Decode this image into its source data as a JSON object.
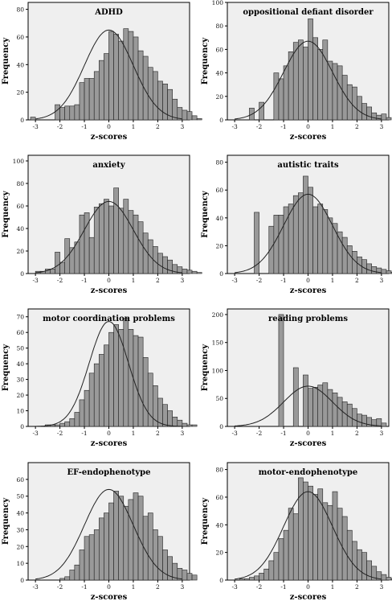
{
  "chart_data": [
    {
      "type": "bar",
      "title": "ADHD",
      "xlabel": "z-scores",
      "ylabel": "Frequency",
      "xlim": [
        -3.3,
        3.3
      ],
      "ylim": [
        0,
        85
      ],
      "xticks": [
        "-3",
        "-2",
        "-1",
        "0",
        "1",
        "2",
        "3"
      ],
      "yticks": [
        "0",
        "20",
        "40",
        "60",
        "80"
      ],
      "bin_start": -3.2,
      "bin_width": 0.2,
      "values": [
        2,
        0,
        0,
        0,
        0,
        11,
        9,
        10,
        10,
        11,
        27,
        30,
        30,
        35,
        43,
        48,
        64,
        62,
        57,
        66,
        64,
        60,
        50,
        46,
        38,
        35,
        28,
        26,
        22,
        15,
        9,
        7,
        6,
        3,
        1
      ],
      "curve": {
        "mean": 0.0,
        "sd": 1.0,
        "peak": 65
      }
    },
    {
      "type": "bar",
      "title": "oppositional defiant disorder",
      "xlabel": "z-scores",
      "ylabel": "Frequency",
      "xlim": [
        -3.3,
        3.3
      ],
      "ylim": [
        0,
        100
      ],
      "xticks": [
        "-3",
        "-2",
        "-1",
        "0",
        "1",
        "2",
        "3"
      ],
      "yticks": [
        "0",
        "20",
        "40",
        "60",
        "80",
        "100"
      ],
      "bin_start": -3.2,
      "bin_width": 0.2,
      "values": [
        0,
        0,
        0,
        0,
        10,
        0,
        15,
        0,
        0,
        40,
        35,
        46,
        58,
        66,
        68,
        62,
        86,
        70,
        60,
        68,
        50,
        48,
        46,
        38,
        30,
        28,
        20,
        14,
        11,
        6,
        4,
        5,
        2,
        0,
        1
      ],
      "curve": {
        "mean": 0.0,
        "sd": 1.0,
        "peak": 67
      }
    },
    {
      "type": "bar",
      "title": "anxiety",
      "xlabel": "z-scores",
      "ylabel": "Frequency",
      "xlim": [
        -3.3,
        3.3
      ],
      "ylim": [
        0,
        105
      ],
      "xticks": [
        "-3",
        "-2",
        "-1",
        "0",
        "1",
        "2",
        "3"
      ],
      "yticks": [
        "0",
        "20",
        "40",
        "60",
        "80",
        "100"
      ],
      "bin_start": -3.2,
      "bin_width": 0.2,
      "values": [
        0,
        2,
        2,
        4,
        4,
        19,
        10,
        31,
        23,
        28,
        52,
        54,
        32,
        59,
        62,
        66,
        60,
        76,
        58,
        66,
        56,
        52,
        46,
        36,
        30,
        24,
        18,
        15,
        12,
        8,
        6,
        4,
        3,
        2,
        1
      ],
      "curve": {
        "mean": 0.0,
        "sd": 1.0,
        "peak": 64
      }
    },
    {
      "type": "bar",
      "title": "autistic traits",
      "xlabel": "z-scores",
      "ylabel": "Frequency",
      "xlim": [
        -3.3,
        3.3
      ],
      "ylim": [
        0,
        85
      ],
      "xticks": [
        "-3",
        "-2",
        "-1",
        "0",
        "1",
        "2",
        "3"
      ],
      "yticks": [
        "0",
        "20",
        "40",
        "60",
        "80"
      ],
      "bin_start": -3.2,
      "bin_width": 0.2,
      "values": [
        0,
        0,
        0,
        0,
        0,
        44,
        0,
        0,
        34,
        42,
        42,
        48,
        50,
        56,
        58,
        70,
        62,
        48,
        50,
        46,
        40,
        36,
        30,
        26,
        20,
        16,
        12,
        10,
        7,
        5,
        4,
        3,
        2,
        1,
        0
      ],
      "curve": {
        "mean": 0.0,
        "sd": 1.0,
        "peak": 57
      }
    },
    {
      "type": "bar",
      "title": "motor coordination problems",
      "xlabel": "z-scores",
      "ylabel": "Frequency",
      "xlim": [
        -3.3,
        3.3
      ],
      "ylim": [
        0,
        75
      ],
      "xticks": [
        "-3",
        "-2",
        "-1",
        "0",
        "1",
        "2",
        "3"
      ],
      "yticks": [
        "0",
        "10",
        "20",
        "30",
        "40",
        "50",
        "60",
        "70"
      ],
      "bin_start": -3.2,
      "bin_width": 0.2,
      "values": [
        0,
        0,
        0,
        1,
        1,
        1,
        2,
        3,
        5,
        9,
        17,
        23,
        34,
        40,
        46,
        52,
        60,
        65,
        62,
        69,
        62,
        58,
        57,
        44,
        34,
        26,
        18,
        14,
        10,
        6,
        4,
        2,
        1,
        1,
        0
      ],
      "curve": {
        "mean": 0.0,
        "sd": 0.8,
        "peak": 67
      }
    },
    {
      "type": "bar",
      "title": "reading problems",
      "xlabel": "z-scores",
      "ylabel": "Frequency",
      "xlim": [
        -3.3,
        3.3
      ],
      "ylim": [
        0,
        210
      ],
      "xticks": [
        "-3",
        "-2",
        "-1",
        "0",
        "1",
        "2",
        "3"
      ],
      "yticks": [
        "0",
        "50",
        "100",
        "150",
        "200"
      ],
      "bin_start": -3.2,
      "bin_width": 0.2,
      "values": [
        0,
        0,
        0,
        0,
        0,
        0,
        0,
        0,
        0,
        0,
        200,
        0,
        0,
        105,
        0,
        92,
        68,
        70,
        74,
        78,
        66,
        60,
        52,
        44,
        40,
        32,
        22,
        20,
        16,
        12,
        14,
        6,
        0,
        0,
        0
      ],
      "curve": {
        "mean": 0.0,
        "sd": 1.0,
        "peak": 72
      }
    },
    {
      "type": "bar",
      "title": "EF-endophenotype",
      "xlabel": "z-scores",
      "ylabel": "Frequency",
      "xlim": [
        -3.3,
        3.3
      ],
      "ylim": [
        0,
        70
      ],
      "xticks": [
        "-3",
        "-2",
        "-1",
        "0",
        "1",
        "2",
        "3"
      ],
      "yticks": [
        "0",
        "10",
        "20",
        "30",
        "40",
        "50",
        "60"
      ],
      "bin_start": -3.2,
      "bin_width": 0.2,
      "values": [
        0,
        0,
        0,
        0,
        0,
        0,
        1,
        2,
        6,
        9,
        18,
        26,
        27,
        30,
        37,
        40,
        46,
        53,
        50,
        44,
        48,
        52,
        50,
        38,
        40,
        30,
        26,
        18,
        14,
        10,
        7,
        6,
        4,
        3,
        0
      ],
      "curve": {
        "mean": 0.0,
        "sd": 1.0,
        "peak": 54
      }
    },
    {
      "type": "bar",
      "title": "motor-endophenotype",
      "xlabel": "z-scores",
      "ylabel": "Frequency",
      "xlim": [
        -3.3,
        3.3
      ],
      "ylim": [
        0,
        85
      ],
      "xticks": [
        "-3",
        "-2",
        "-1",
        "0",
        "1",
        "2",
        "3"
      ],
      "yticks": [
        "0",
        "20",
        "40",
        "60",
        "80"
      ],
      "bin_start": -3.2,
      "bin_width": 0.2,
      "values": [
        0,
        0,
        1,
        1,
        2,
        3,
        5,
        8,
        14,
        20,
        30,
        36,
        52,
        48,
        74,
        71,
        68,
        62,
        66,
        56,
        54,
        64,
        52,
        46,
        36,
        28,
        22,
        20,
        14,
        10,
        6,
        4,
        2,
        1,
        0
      ],
      "curve": {
        "mean": 0.0,
        "sd": 1.0,
        "peak": 64
      }
    }
  ]
}
